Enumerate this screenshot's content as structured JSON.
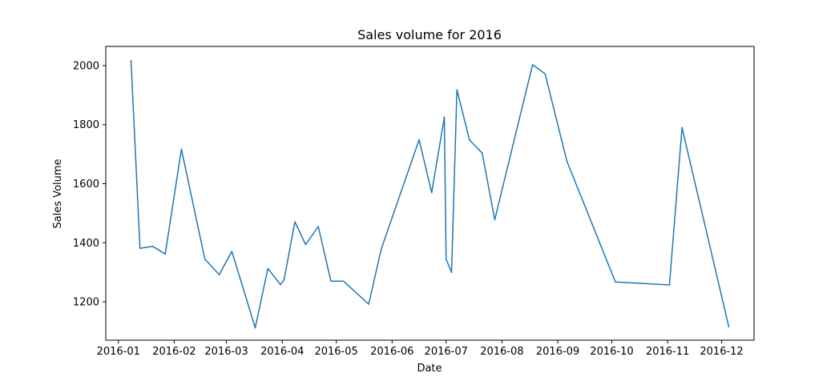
{
  "chart_data": {
    "type": "line",
    "title": "Sales volume for 2016",
    "xlabel": "Date",
    "ylabel": "Sales Volume",
    "x_ticks": [
      "2016-01",
      "2016-02",
      "2016-03",
      "2016-04",
      "2016-05",
      "2016-06",
      "2016-07",
      "2016-08",
      "2016-09",
      "2016-10",
      "2016-11",
      "2016-12"
    ],
    "y_ticks": [
      1200,
      1400,
      1600,
      1800,
      2000
    ],
    "xlim": [
      "2015-12-25",
      "2016-12-19"
    ],
    "ylim": [
      1070,
      2065
    ],
    "grid": false,
    "colors": {
      "line": "#1f77b4",
      "axis": "#000000",
      "background": "#ffffff"
    },
    "series": [
      {
        "points": [
          {
            "x": "2016-01-08",
            "y": 2017
          },
          {
            "x": "2016-01-13",
            "y": 1381
          },
          {
            "x": "2016-01-20",
            "y": 1388
          },
          {
            "x": "2016-01-27",
            "y": 1362
          },
          {
            "x": "2016-02-05",
            "y": 1717
          },
          {
            "x": "2016-02-18",
            "y": 1345
          },
          {
            "x": "2016-02-26",
            "y": 1292
          },
          {
            "x": "2016-03-04",
            "y": 1371
          },
          {
            "x": "2016-03-17",
            "y": 1112
          },
          {
            "x": "2016-03-24",
            "y": 1313
          },
          {
            "x": "2016-03-31",
            "y": 1258
          },
          {
            "x": "2016-04-02",
            "y": 1275
          },
          {
            "x": "2016-04-08",
            "y": 1471
          },
          {
            "x": "2016-04-14",
            "y": 1394
          },
          {
            "x": "2016-04-21",
            "y": 1455
          },
          {
            "x": "2016-04-28",
            "y": 1270
          },
          {
            "x": "2016-05-05",
            "y": 1270
          },
          {
            "x": "2016-05-19",
            "y": 1192
          },
          {
            "x": "2016-05-26",
            "y": 1379
          },
          {
            "x": "2016-06-16",
            "y": 1749
          },
          {
            "x": "2016-06-23",
            "y": 1570
          },
          {
            "x": "2016-06-30",
            "y": 1826
          },
          {
            "x": "2016-07-01",
            "y": 1345
          },
          {
            "x": "2016-07-04",
            "y": 1300
          },
          {
            "x": "2016-07-07",
            "y": 1918
          },
          {
            "x": "2016-07-14",
            "y": 1748
          },
          {
            "x": "2016-07-21",
            "y": 1704
          },
          {
            "x": "2016-07-28",
            "y": 1478
          },
          {
            "x": "2016-08-18",
            "y": 2003
          },
          {
            "x": "2016-08-25",
            "y": 1972
          },
          {
            "x": "2016-09-06",
            "y": 1677
          },
          {
            "x": "2016-10-03",
            "y": 1267
          },
          {
            "x": "2016-11-02",
            "y": 1257
          },
          {
            "x": "2016-11-09",
            "y": 1790
          },
          {
            "x": "2016-12-05",
            "y": 1115
          }
        ]
      }
    ]
  }
}
